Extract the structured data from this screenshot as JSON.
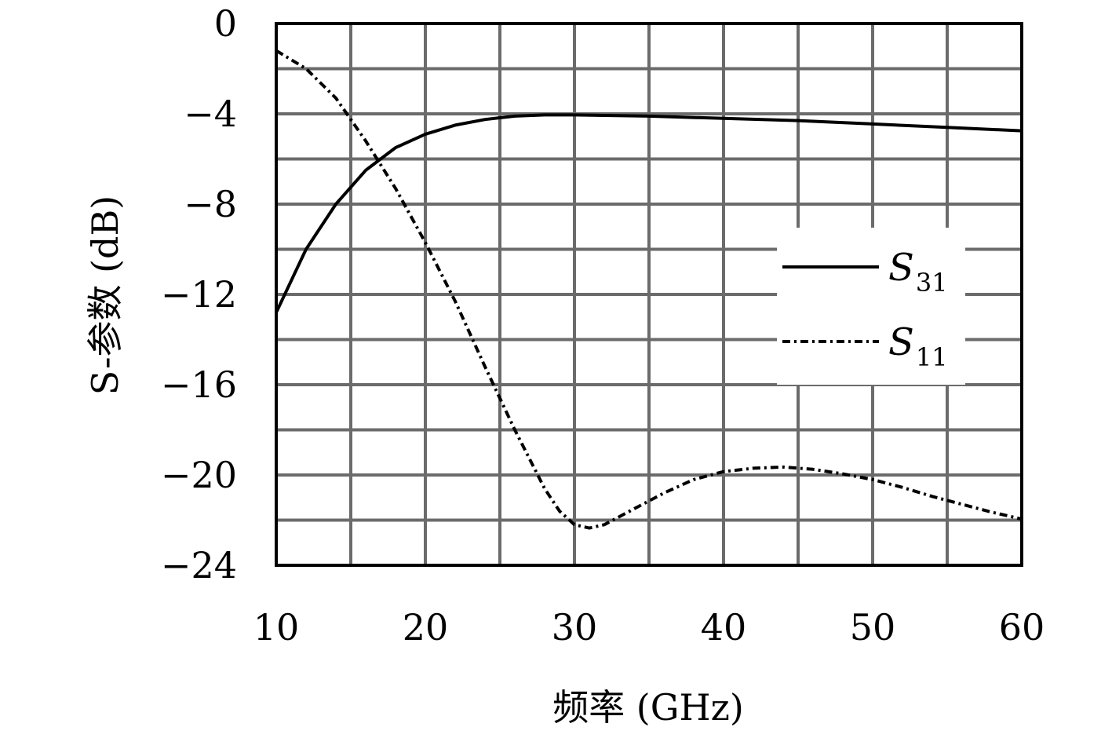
{
  "chart_data": {
    "type": "line",
    "xlabel": "频率 (GHz)",
    "ylabel": "S-参数 (dB)",
    "xlim": [
      10,
      60
    ],
    "ylim": [
      -24,
      0
    ],
    "x_ticks": [
      10,
      20,
      30,
      40,
      50,
      60
    ],
    "y_ticks": [
      0,
      -4,
      -8,
      -12,
      -16,
      -20,
      -24
    ],
    "y_tick_labels": [
      "0",
      "−4",
      "−8",
      "−12",
      "−16",
      "−20",
      "−24"
    ],
    "grid": true,
    "grid_x_step": 5,
    "grid_y_step": 2,
    "legend_position": "right",
    "series": [
      {
        "name": "S31",
        "name_main": "S",
        "name_sub": "31",
        "line_style": "solid",
        "color": "#000000",
        "x": [
          10,
          12,
          14,
          16,
          18,
          20,
          22,
          24,
          26,
          28,
          30,
          35,
          40,
          45,
          50,
          55,
          60
        ],
        "y": [
          -12.8,
          -10.0,
          -8.0,
          -6.5,
          -5.5,
          -4.9,
          -4.5,
          -4.25,
          -4.1,
          -4.05,
          -4.05,
          -4.1,
          -4.2,
          -4.3,
          -4.45,
          -4.6,
          -4.75
        ]
      },
      {
        "name": "S11",
        "name_main": "S",
        "name_sub": "11",
        "line_style": "dash-dot",
        "color": "#000000",
        "x": [
          10,
          12,
          14,
          16,
          18,
          20,
          22,
          24,
          26,
          28,
          29,
          30,
          31,
          32,
          34,
          36,
          38,
          40,
          42,
          44,
          46,
          48,
          50,
          52,
          54,
          56,
          58,
          60
        ],
        "y": [
          -1.2,
          -2.0,
          -3.3,
          -5.2,
          -7.3,
          -9.7,
          -12.3,
          -15.2,
          -18.0,
          -20.6,
          -21.6,
          -22.2,
          -22.35,
          -22.2,
          -21.5,
          -20.8,
          -20.2,
          -19.85,
          -19.7,
          -19.65,
          -19.75,
          -19.95,
          -20.2,
          -20.55,
          -20.95,
          -21.3,
          -21.65,
          -21.95
        ]
      }
    ]
  }
}
